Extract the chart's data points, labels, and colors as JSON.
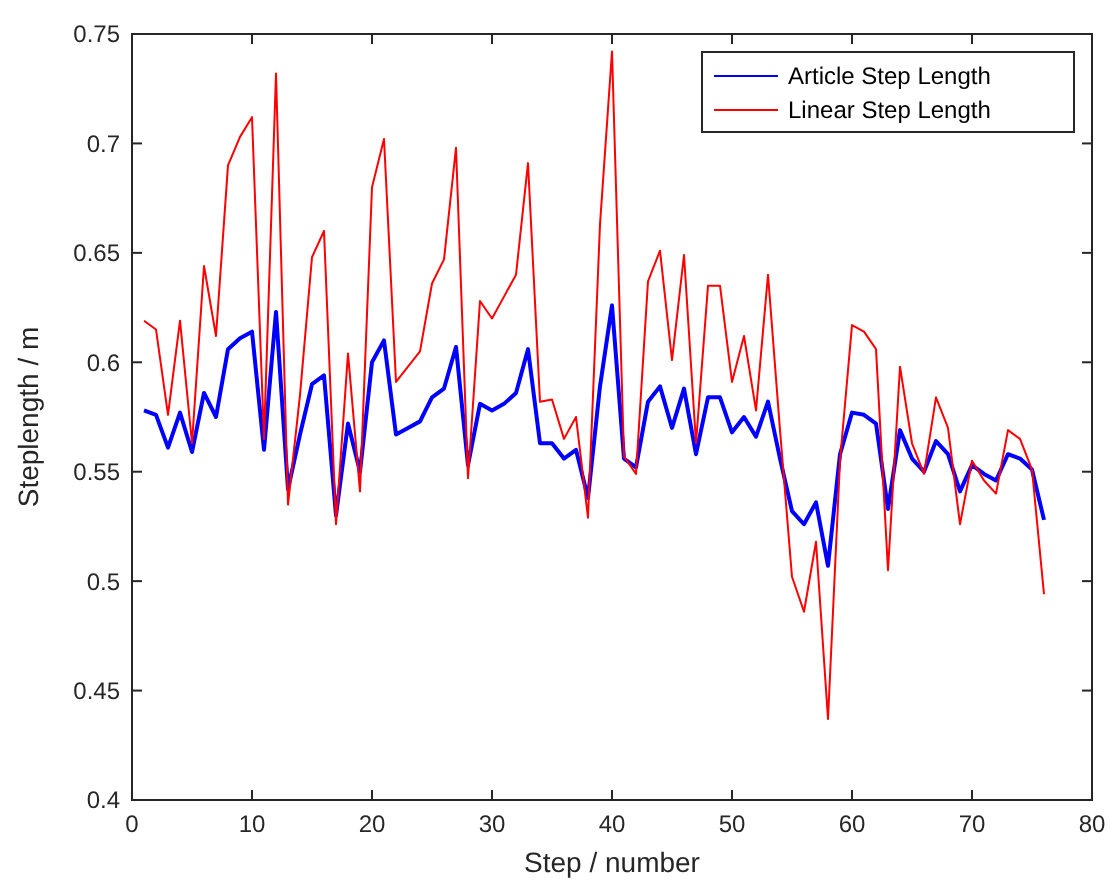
{
  "chart_data": {
    "type": "line",
    "xlabel": "Step / number",
    "ylabel": "Steplength / m",
    "x": [
      1,
      2,
      3,
      4,
      5,
      6,
      7,
      8,
      9,
      10,
      11,
      12,
      13,
      14,
      15,
      16,
      17,
      18,
      19,
      20,
      21,
      22,
      23,
      24,
      25,
      26,
      27,
      28,
      29,
      30,
      31,
      32,
      33,
      34,
      35,
      36,
      37,
      38,
      39,
      40,
      41,
      42,
      43,
      44,
      45,
      46,
      47,
      48,
      49,
      50,
      51,
      52,
      53,
      54,
      55,
      56,
      57,
      58,
      59,
      60,
      61,
      62,
      63,
      64,
      65,
      66,
      67,
      68,
      69,
      70,
      71,
      72,
      73,
      74,
      75,
      76
    ],
    "series": [
      {
        "name": "Article Step Length",
        "color": "#0000ff",
        "values": [
          0.578,
          0.576,
          0.561,
          0.577,
          0.559,
          0.586,
          0.575,
          0.606,
          0.611,
          0.614,
          0.56,
          0.623,
          0.542,
          0.567,
          0.59,
          0.594,
          0.53,
          0.572,
          0.55,
          0.6,
          0.61,
          0.567,
          0.57,
          0.573,
          0.584,
          0.588,
          0.607,
          0.553,
          0.581,
          0.578,
          0.581,
          0.586,
          0.606,
          0.563,
          0.563,
          0.556,
          0.56,
          0.538,
          0.589,
          0.626,
          0.556,
          0.552,
          0.582,
          0.589,
          0.57,
          0.588,
          0.558,
          0.584,
          0.584,
          0.568,
          0.575,
          0.566,
          0.582,
          0.556,
          0.532,
          0.526,
          0.536,
          0.507,
          0.558,
          0.577,
          0.576,
          0.572,
          0.533,
          0.569,
          0.556,
          0.55,
          0.564,
          0.558,
          0.541,
          0.553,
          0.549,
          0.546,
          0.558,
          0.556,
          0.551,
          0.528
        ]
      },
      {
        "name": "Linear Step Length",
        "color": "#ff0000",
        "values": [
          0.619,
          0.615,
          0.576,
          0.619,
          0.563,
          0.644,
          0.612,
          0.69,
          0.703,
          0.712,
          0.565,
          0.732,
          0.535,
          0.585,
          0.648,
          0.66,
          0.526,
          0.604,
          0.541,
          0.68,
          0.702,
          0.591,
          0.598,
          0.605,
          0.636,
          0.647,
          0.698,
          0.547,
          0.628,
          0.62,
          0.63,
          0.64,
          0.691,
          0.582,
          0.583,
          0.565,
          0.575,
          0.529,
          0.663,
          0.742,
          0.557,
          0.549,
          0.637,
          0.651,
          0.601,
          0.649,
          0.563,
          0.635,
          0.635,
          0.591,
          0.612,
          0.578,
          0.64,
          0.569,
          0.502,
          0.486,
          0.518,
          0.437,
          0.555,
          0.617,
          0.614,
          0.606,
          0.505,
          0.598,
          0.563,
          0.549,
          0.584,
          0.57,
          0.526,
          0.555,
          0.546,
          0.54,
          0.569,
          0.565,
          0.551,
          0.494
        ]
      }
    ],
    "xlim": [
      0,
      80
    ],
    "xticks": [
      0,
      10,
      20,
      30,
      40,
      50,
      60,
      70,
      80
    ],
    "ylim": [
      0.4,
      0.75
    ],
    "yticks": [
      0.4,
      0.45,
      0.5,
      0.55,
      0.6,
      0.65,
      0.7,
      0.75
    ],
    "legend": "top right",
    "grid": false,
    "line_style": "solid",
    "marker": "none"
  }
}
